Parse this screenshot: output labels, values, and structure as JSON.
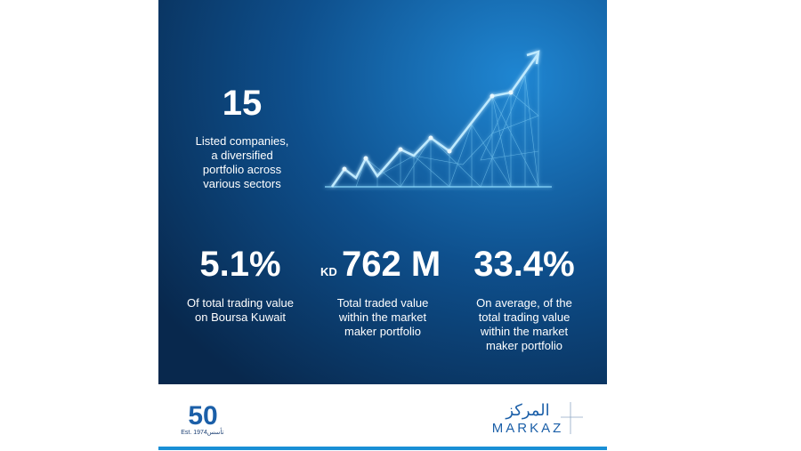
{
  "highlight": {
    "value": "15",
    "description": [
      "Listed companies,",
      "a diversified",
      "portfolio across",
      "various sectors"
    ]
  },
  "stats": [
    {
      "value": "5.1%",
      "description": [
        "Of total trading value",
        "on Boursa Kuwait"
      ]
    },
    {
      "prefix": "KD",
      "value": "762 M",
      "description": [
        "Total traded value",
        "within the market",
        "maker portfolio"
      ]
    },
    {
      "value": "33.4%",
      "description": [
        "On average, of the",
        "total trading value",
        "within the market",
        "maker portfolio"
      ]
    }
  ],
  "footer": {
    "anniversary_logo": {
      "number": "50",
      "established": "Est. 1974",
      "arabic": "تأسس"
    },
    "brand_logo": {
      "arabic": "المركز",
      "latin": "MARKAZ"
    }
  }
}
